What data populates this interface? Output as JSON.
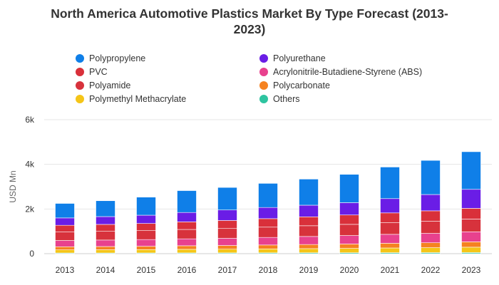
{
  "chart_data": {
    "type": "bar",
    "stacked": true,
    "title_line1": "North America Automotive Plastics Market By Type Forecast (2013-",
    "title_line2": "2023)",
    "ylabel": "USD Mn",
    "xlabel": "",
    "ylim": [
      0,
      6000
    ],
    "yticks": [
      {
        "value": 0,
        "label": "0"
      },
      {
        "value": 2000,
        "label": "2k"
      },
      {
        "value": 4000,
        "label": "4k"
      },
      {
        "value": 6000,
        "label": "6k"
      }
    ],
    "grid": true,
    "legend_position": "top",
    "categories": [
      "2013",
      "2014",
      "2015",
      "2016",
      "2017",
      "2018",
      "2019",
      "2020",
      "2021",
      "2022",
      "2023"
    ],
    "series": [
      {
        "name": "Others",
        "color": "#2ec4a0",
        "values": [
          30,
          30,
          32,
          34,
          36,
          38,
          40,
          42,
          45,
          48,
          50
        ]
      },
      {
        "name": "Polymethyl Methacrylate",
        "color": "#f5c518",
        "values": [
          140,
          145,
          150,
          160,
          165,
          175,
          185,
          195,
          210,
          220,
          240
        ]
      },
      {
        "name": "Polycarbonate",
        "color": "#f58220",
        "values": [
          140,
          145,
          150,
          160,
          165,
          175,
          185,
          195,
          210,
          220,
          240
        ]
      },
      {
        "name": "Acrylonitrile-Butadiene-Styrene (ABS)",
        "color": "#e8418e",
        "values": [
          280,
          290,
          300,
          310,
          320,
          340,
          360,
          380,
          400,
          420,
          450
        ]
      },
      {
        "name": "Polyamide",
        "color": "#d7323c",
        "values": [
          380,
          390,
          400,
          420,
          440,
          460,
          480,
          500,
          520,
          550,
          570
        ]
      },
      {
        "name": "PVC",
        "color": "#d9303a",
        "values": [
          300,
          310,
          320,
          340,
          360,
          380,
          400,
          420,
          440,
          460,
          480
        ]
      },
      {
        "name": "Polyurethane",
        "color": "#6a1de6",
        "values": [
          330,
          350,
          370,
          420,
          470,
          500,
          520,
          550,
          640,
          730,
          850
        ]
      },
      {
        "name": "Polypropylene",
        "color": "#0f7fe8",
        "values": [
          650,
          710,
          810,
          980,
          1010,
          1080,
          1170,
          1270,
          1415,
          1530,
          1686
        ]
      }
    ]
  },
  "legend": [
    {
      "label": "Polypropylene",
      "color": "#0f7fe8"
    },
    {
      "label": "Polyurethane",
      "color": "#6a1de6"
    },
    {
      "label": "PVC",
      "color": "#d9303a"
    },
    {
      "label": "Acrylonitrile-Butadiene-Styrene (ABS)",
      "color": "#e8418e"
    },
    {
      "label": "Polyamide",
      "color": "#d7323c"
    },
    {
      "label": "Polycarbonate",
      "color": "#f58220"
    },
    {
      "label": "Polymethyl Methacrylate",
      "color": "#f5c518"
    },
    {
      "label": "Others",
      "color": "#2ec4a0"
    }
  ]
}
